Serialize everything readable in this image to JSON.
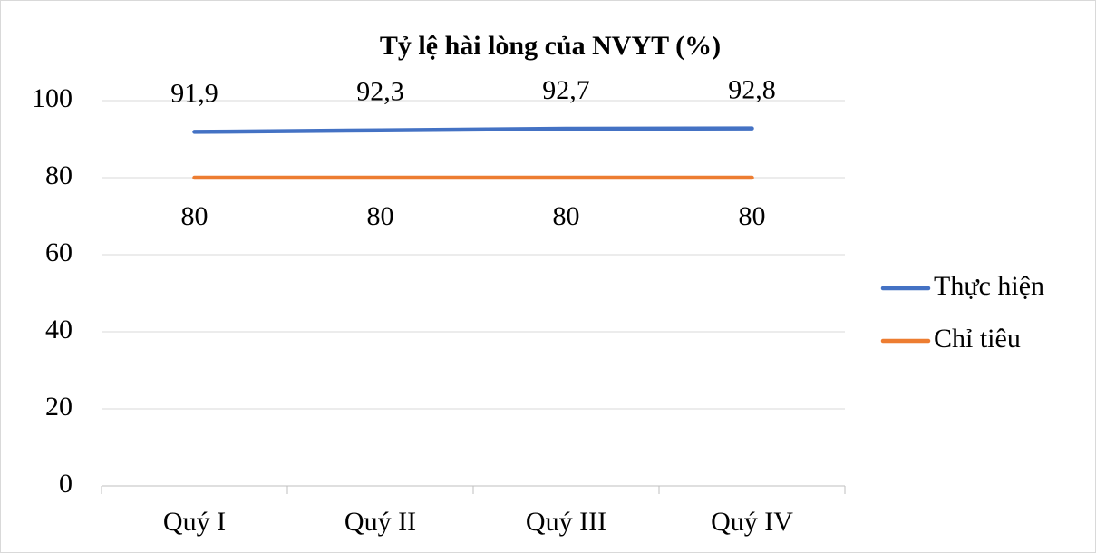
{
  "chart_data": {
    "type": "line",
    "title": "Tỷ lệ hài lòng của NVYT (%)",
    "categories": [
      "Quý I",
      "Quý II",
      "Quý III",
      "Quý IV"
    ],
    "series": [
      {
        "name": "Thực hiện",
        "color": "#4472c4",
        "values": [
          91.9,
          92.3,
          92.7,
          92.8
        ],
        "value_labels": [
          "91,9",
          "92,3",
          "92,7",
          "92,8"
        ]
      },
      {
        "name": "Chỉ tiêu",
        "color": "#ed7d31",
        "values": [
          80,
          80,
          80,
          80
        ]
      }
    ],
    "ylim": [
      0,
      100
    ],
    "yticks": [
      0,
      20,
      40,
      60,
      80,
      100
    ],
    "grid": true,
    "legend": "right"
  }
}
